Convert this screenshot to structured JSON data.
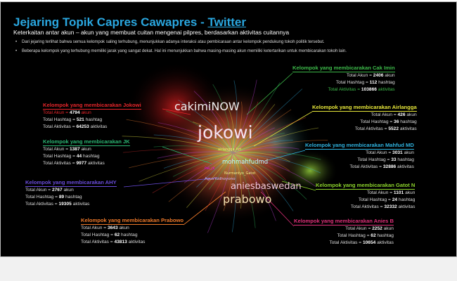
{
  "header": {
    "title": "Jejaring Topik Capres Cawapres - ",
    "title_link": "Twitter",
    "subtitle": "Keterkaitan antar akun – akun yang membuat cuitan mengenai pilpres, berdasarkan aktivitas cuitannya"
  },
  "bullets": [
    "Dari jejaring terlihat bahwa semua kelompok saling terhubung, menunjukkan adanya interaksi atau pembicaraan antar kelompok pendukung tokoh politik tersebut.",
    "Beberapa kelompok yang terhubung memiliki jarak yang sangat dekat. Hal ini menunjukkan bahwa masing-masing  akun  memiliki ketertarikan untuk membicarakan tokoh lain."
  ],
  "network_labels": [
    "cakimiNOW",
    "jokowi",
    "airlangga_hrt",
    "mohmahfudmd",
    "Pak_JK",
    "Nurmantyo_Gatot",
    "AgusYudhoyono",
    "aniesbaswedan",
    "prabowo"
  ],
  "groups": [
    {
      "title": "Kelompok yang membicarakan Jokowi",
      "color": "#e8262b",
      "stats": [
        [
          "Total Akun",
          "4794",
          "akun"
        ],
        [
          "Total Hashtag",
          "521",
          "hashtag"
        ],
        [
          "Total Aktivitas",
          "64253",
          "aktivitas"
        ]
      ]
    },
    {
      "title": "Kelompok yang membicarakan JK",
      "color": "#2bb673",
      "stats": [
        [
          "Total Akun",
          "1387",
          "akun"
        ],
        [
          "Total Hashtag",
          "44",
          "hashtag"
        ],
        [
          "Total Aktivitas",
          "9977",
          "aktivitas"
        ]
      ]
    },
    {
      "title": "Kelompok yang membicarakan AHY",
      "color": "#6a4cdc",
      "stats": [
        [
          "Total Akun",
          "2767",
          "akun"
        ],
        [
          "Total Hashtag",
          "89",
          "hashtag"
        ],
        [
          "Total Aktivitas",
          "19305",
          "aktivitas"
        ]
      ]
    },
    {
      "title": "Kelompok yang membicarakan Prabowo",
      "color": "#f07a2a",
      "stats": [
        [
          "Total Akun",
          "3643",
          "akun"
        ],
        [
          "Total Hashtag",
          "62",
          "hashtag"
        ],
        [
          "Total Aktivitas",
          "43813",
          "aktivitas"
        ]
      ]
    },
    {
      "title": "Kelompok yang membicarakan Cak Imin",
      "color": "#3dbb4a",
      "stats": [
        [
          "Total Akun",
          "2406",
          "akun"
        ],
        [
          "Total Hashtag",
          "112",
          "hashtag"
        ],
        [
          "Total Aktivitas",
          "103866",
          "aktivitas"
        ]
      ]
    },
    {
      "title": "Kelompok yang membicarakan Airlangga",
      "color": "#e8e83a",
      "stats": [
        [
          "Total Akun",
          "426",
          "akun"
        ],
        [
          "Total Hashtag",
          "36",
          "hashtag"
        ],
        [
          "Total Aktivitas",
          "5522",
          "aktivitas"
        ]
      ]
    },
    {
      "title": "Kelompok yang membicarakan Mahfud MD",
      "color": "#2fb3e0",
      "stats": [
        [
          "Total Akun",
          "3031",
          "akun"
        ],
        [
          "Total Hashtag",
          "33",
          "hashtag"
        ],
        [
          "Total Aktivitas",
          "32886",
          "aktivitas"
        ]
      ]
    },
    {
      "title": "Kelompok yang membicarakan Gatot N",
      "color": "#8ed62c",
      "stats": [
        [
          "Total Akun",
          "1101",
          "akun"
        ],
        [
          "Total Hashtag",
          "24",
          "hashtag"
        ],
        [
          "Total Aktivitas",
          "32332",
          "aktivitas"
        ]
      ]
    },
    {
      "title": "Kelompok yang membicarakan Anies B",
      "color": "#e0307a",
      "stats": [
        [
          "Total Akun",
          "2252",
          "akun"
        ],
        [
          "Total Hashtag",
          "62",
          "hashtag"
        ],
        [
          "Total Aktivitas",
          "10654",
          "aktivitas"
        ]
      ]
    }
  ]
}
